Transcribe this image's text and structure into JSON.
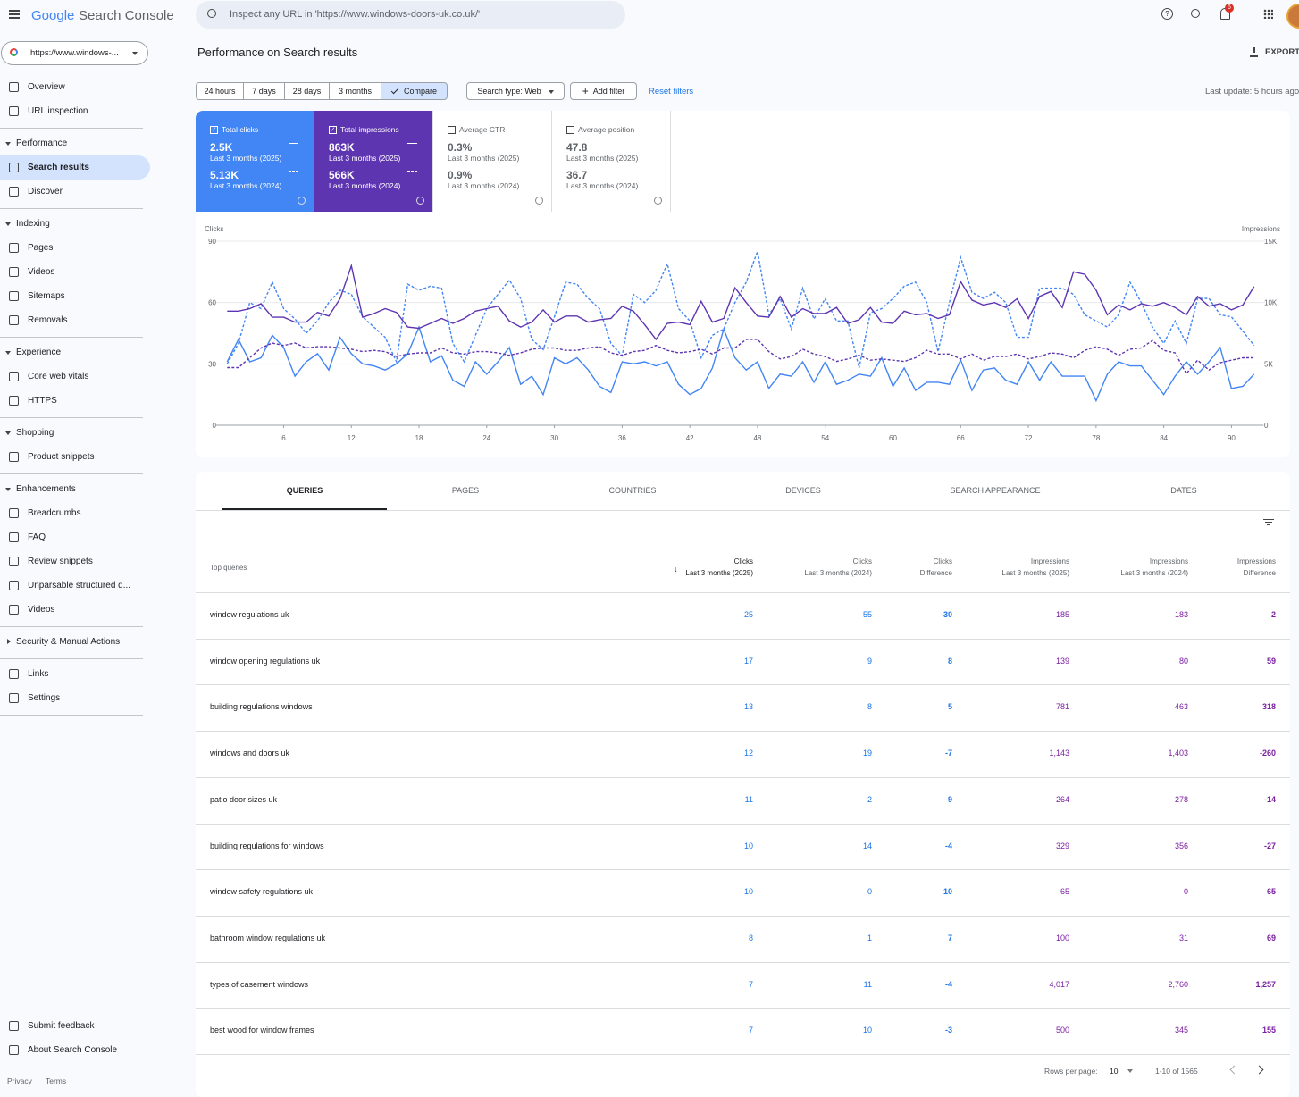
{
  "header": {
    "logo_google": "Google",
    "product": "Search Console",
    "search_placeholder": "Inspect any URL in 'https://www.windows-doors-uk.co.uk/'",
    "notification_count": "6"
  },
  "sidebar": {
    "property": "https://www.windows-...",
    "top": [
      "Overview",
      "URL inspection"
    ],
    "sections": [
      {
        "title": "Performance",
        "items": [
          "Search results",
          "Discover"
        ]
      },
      {
        "title": "Indexing",
        "items": [
          "Pages",
          "Videos",
          "Sitemaps",
          "Removals"
        ]
      },
      {
        "title": "Experience",
        "items": [
          "Core web vitals",
          "HTTPS"
        ]
      },
      {
        "title": "Shopping",
        "items": [
          "Product snippets"
        ]
      },
      {
        "title": "Enhancements",
        "items": [
          "Breadcrumbs",
          "FAQ",
          "Review snippets",
          "Unparsable structured d...",
          "Videos"
        ]
      },
      {
        "title": "Security & Manual Actions",
        "items": []
      }
    ],
    "bottom": [
      "Links",
      "Settings"
    ],
    "feedback": [
      "Submit feedback",
      "About Search Console"
    ],
    "footer": [
      "Privacy",
      "Terms"
    ]
  },
  "performance": {
    "title": "Performance on Search results",
    "export": "EXPORT",
    "date_ranges": [
      "24 hours",
      "7 days",
      "28 days",
      "3 months"
    ],
    "compare": "Compare",
    "search_type": "Search type: Web",
    "add_filter": "Add filter",
    "reset_filters": "Reset filters",
    "last_update": "Last update: 5 hours ago"
  },
  "metrics": [
    {
      "label": "Total clicks",
      "current": "2.5K",
      "current_period": "Last 3 months (2025)",
      "previous": "5.13K",
      "previous_period": "Last 3 months (2024)",
      "selected": true,
      "color": "#4285f4"
    },
    {
      "label": "Total impressions",
      "current": "863K",
      "current_period": "Last 3 months (2025)",
      "previous": "566K",
      "previous_period": "Last 3 months (2024)",
      "selected": true,
      "color": "#5e35b1"
    },
    {
      "label": "Average CTR",
      "current": "0.3%",
      "current_period": "Last 3 months (2025)",
      "previous": "0.9%",
      "previous_period": "Last 3 months (2024)",
      "selected": false,
      "color": "#ffffff"
    },
    {
      "label": "Average position",
      "current": "47.8",
      "current_period": "Last 3 months (2025)",
      "previous": "36.7",
      "previous_period": "Last 3 months (2024)",
      "selected": false,
      "color": "#ffffff"
    }
  ],
  "chart_data": {
    "type": "line",
    "y_label": "Clicks",
    "y2_label": "Impressions",
    "grid": true,
    "x": [
      1,
      2,
      3,
      4,
      5,
      6,
      7,
      8,
      9,
      10,
      11,
      12,
      13,
      14,
      15,
      16,
      17,
      18,
      19,
      20,
      21,
      22,
      23,
      24,
      25,
      26,
      27,
      28,
      29,
      30,
      31,
      32,
      33,
      34,
      35,
      36,
      37,
      38,
      39,
      40,
      41,
      42,
      43,
      44,
      45,
      46,
      47,
      48,
      49,
      50,
      51,
      52,
      53,
      54,
      55,
      56,
      57,
      58,
      59,
      60,
      61,
      62,
      63,
      64,
      65,
      66,
      67,
      68,
      69,
      70,
      71,
      72,
      73,
      74,
      75,
      76,
      77,
      78,
      79,
      80,
      81,
      82,
      83,
      84,
      85,
      86,
      87,
      88,
      89,
      90,
      91,
      92
    ],
    "xlim": [
      0.5,
      92.5
    ],
    "xticks": [
      6,
      12,
      18,
      24,
      30,
      36,
      42,
      48,
      54,
      60,
      66,
      72,
      78,
      84,
      90
    ],
    "ylim": [
      0,
      90
    ],
    "yticks": [
      0,
      30,
      60,
      90
    ],
    "y2lim": [
      0,
      15000
    ],
    "y2ticks": [
      0,
      {
        "value": 5000,
        "label": "5K"
      },
      {
        "value": 10000,
        "label": "10K"
      },
      {
        "value": 15000,
        "label": "15K"
      }
    ],
    "series": [
      {
        "color": "#4285f4",
        "dash": false,
        "axis": "y",
        "values": [
          31,
          42,
          31,
          33,
          44,
          38,
          24,
          31,
          35,
          27,
          43,
          35,
          30,
          29,
          27,
          30,
          35,
          48,
          31,
          34,
          22,
          19,
          31,
          25,
          31,
          38,
          20,
          24,
          15,
          33,
          30,
          33,
          27,
          19,
          16,
          31,
          30,
          31,
          29,
          31,
          20,
          15,
          18,
          28,
          47,
          33,
          27,
          31,
          18,
          25,
          24,
          31,
          21,
          31,
          20,
          22,
          25,
          24,
          33,
          19,
          28,
          17,
          21,
          21,
          20,
          32,
          17,
          27,
          28,
          22,
          20,
          31,
          22,
          31,
          24,
          24,
          24,
          12,
          25,
          31,
          29,
          29,
          22,
          15,
          24,
          31,
          25,
          31,
          38,
          18,
          19,
          25
        ]
      },
      {
        "color": "#4285f4",
        "dash": true,
        "axis": "y",
        "values": [
          30,
          40,
          60,
          57,
          70,
          57,
          52,
          45,
          51,
          60,
          66,
          64,
          53,
          48,
          43,
          31,
          69,
          66,
          68,
          67,
          40,
          31,
          44,
          57,
          64,
          71,
          62,
          42,
          37,
          53,
          70,
          69,
          62,
          57,
          40,
          34,
          64,
          60,
          66,
          79,
          57,
          51,
          33,
          44,
          47,
          60,
          70,
          85,
          54,
          62,
          47,
          67,
          52,
          62,
          51,
          51,
          28,
          55,
          57,
          62,
          68,
          70,
          60,
          36,
          60,
          82,
          65,
          62,
          65,
          60,
          43,
          43,
          67,
          67,
          67,
          64,
          54,
          51,
          48,
          54,
          70,
          60,
          48,
          40,
          51,
          40,
          62,
          62,
          54,
          53,
          46,
          39
        ]
      },
      {
        "color": "#5e35b1",
        "dash": false,
        "axis": "y2",
        "values": [
          9300,
          9300,
          9500,
          9900,
          8800,
          8800,
          8400,
          8400,
          9200,
          8900,
          10300,
          13000,
          8800,
          9100,
          9500,
          9200,
          8000,
          7900,
          8300,
          8700,
          8300,
          8700,
          9300,
          9500,
          9700,
          8500,
          8000,
          8400,
          9400,
          8400,
          8900,
          8900,
          8400,
          8600,
          8700,
          9700,
          9300,
          8200,
          7000,
          8300,
          8400,
          8200,
          10100,
          8400,
          8700,
          11200,
          10000,
          8900,
          8800,
          10500,
          8800,
          9500,
          9100,
          9100,
          9600,
          8300,
          8600,
          9600,
          8400,
          8300,
          9300,
          9000,
          9100,
          8700,
          9000,
          11700,
          10200,
          9800,
          10000,
          9600,
          10300,
          8700,
          10500,
          10900,
          9600,
          12500,
          12300,
          11000,
          9000,
          9800,
          9400,
          9900,
          9700,
          10000,
          9600,
          9000,
          10500,
          9700,
          9900,
          9400,
          9800,
          11300
        ]
      },
      {
        "color": "#5e35b1",
        "dash": true,
        "axis": "y2",
        "values": [
          4700,
          4700,
          5500,
          6300,
          6700,
          6500,
          6700,
          6300,
          6400,
          6400,
          6300,
          6200,
          6000,
          6100,
          6000,
          5600,
          5800,
          5900,
          5900,
          6300,
          5900,
          5800,
          6000,
          6000,
          5900,
          5700,
          5900,
          6200,
          6300,
          6300,
          6100,
          6100,
          6300,
          6400,
          5900,
          5700,
          6000,
          6100,
          6500,
          6100,
          5900,
          6000,
          6200,
          5800,
          6300,
          6300,
          7000,
          7000,
          6000,
          5400,
          5600,
          6200,
          5800,
          5600,
          5200,
          5400,
          5700,
          5300,
          5400,
          5300,
          5200,
          5500,
          6100,
          5800,
          5800,
          5400,
          5800,
          5300,
          5600,
          5600,
          5800,
          5400,
          5600,
          5900,
          5800,
          5500,
          6100,
          6400,
          6200,
          5700,
          6200,
          6300,
          6900,
          6100,
          5900,
          4200,
          5300,
          4500,
          5100,
          5300,
          5500,
          5500
        ]
      }
    ]
  },
  "table": {
    "tabs": [
      "QUERIES",
      "PAGES",
      "COUNTRIES",
      "DEVICES",
      "SEARCH APPEARANCE",
      "DATES"
    ],
    "columns": [
      {
        "title": "Top queries"
      },
      {
        "title": "Clicks",
        "subtitle": "Last 3 months (2025)"
      },
      {
        "title": "Clicks",
        "subtitle": "Last 3 months (2024)"
      },
      {
        "title": "Clicks",
        "subtitle": "Difference"
      },
      {
        "title": "Impressions",
        "subtitle": "Last 3 months (2025)"
      },
      {
        "title": "Impressions",
        "subtitle": "Last 3 months (2024)"
      },
      {
        "title": "Impressions",
        "subtitle": "Difference"
      }
    ],
    "rows": [
      [
        "window regulations uk",
        "25",
        "55",
        "-30",
        "185",
        "183",
        "2"
      ],
      [
        "window opening regulations uk",
        "17",
        "9",
        "8",
        "139",
        "80",
        "59"
      ],
      [
        "building regulations windows",
        "13",
        "8",
        "5",
        "781",
        "463",
        "318"
      ],
      [
        "windows and doors uk",
        "12",
        "19",
        "-7",
        "1,143",
        "1,403",
        "-260"
      ],
      [
        "patio door sizes uk",
        "11",
        "2",
        "9",
        "264",
        "278",
        "-14"
      ],
      [
        "building regulations for windows",
        "10",
        "14",
        "-4",
        "329",
        "356",
        "-27"
      ],
      [
        "window safety regulations uk",
        "10",
        "0",
        "10",
        "65",
        "0",
        "65"
      ],
      [
        "bathroom window regulations uk",
        "8",
        "1",
        "7",
        "100",
        "31",
        "69"
      ],
      [
        "types of casement windows",
        "7",
        "11",
        "-4",
        "4,017",
        "2,760",
        "1,257"
      ],
      [
        "best wood for window frames",
        "7",
        "10",
        "-3",
        "500",
        "345",
        "155"
      ]
    ],
    "rows_per_page_label": "Rows per page:",
    "rows_per_page": "10",
    "range": "1-10 of 1565"
  }
}
